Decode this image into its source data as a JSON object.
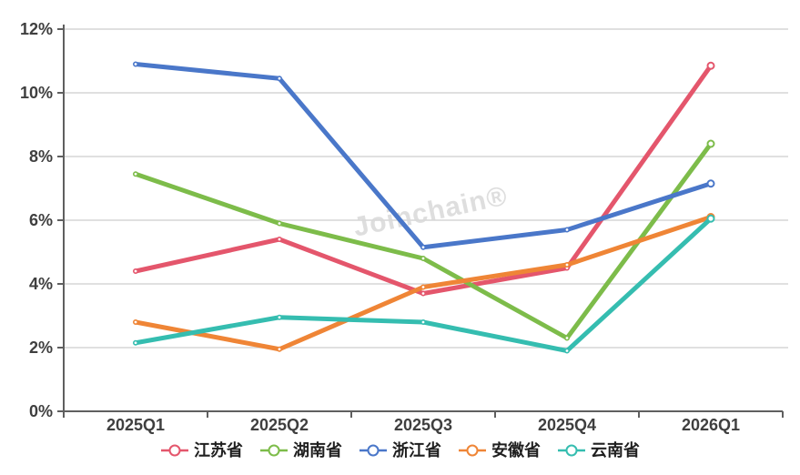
{
  "watermark": "Joinchain®",
  "colors": {
    "background": "#ffffff",
    "axis_line": "#5f5f5f",
    "grid_line": "#d5d5d5",
    "axis_label": "#3f3f3f",
    "legend_label": "#1f1f1f",
    "watermark": "#d9d9d9"
  },
  "chart_data": {
    "type": "line",
    "title": "",
    "xlabel": "",
    "ylabel": "",
    "categories": [
      "2025Q1",
      "2025Q2",
      "2025Q3",
      "2025Q4",
      "2026Q1"
    ],
    "series": [
      {
        "name": "江苏省",
        "color": "#e4566c",
        "values": [
          4.4,
          5.4,
          3.7,
          4.5,
          10.85
        ]
      },
      {
        "name": "湖南省",
        "color": "#7dbc4a",
        "values": [
          7.45,
          5.9,
          4.8,
          2.3,
          8.4
        ]
      },
      {
        "name": "浙江省",
        "color": "#4a77c9",
        "values": [
          10.9,
          10.45,
          5.15,
          5.7,
          7.15
        ]
      },
      {
        "name": "安徽省",
        "color": "#ef8536",
        "values": [
          2.8,
          1.95,
          3.9,
          4.6,
          6.1
        ]
      },
      {
        "name": "云南省",
        "color": "#35bdb0",
        "values": [
          2.15,
          2.95,
          2.8,
          1.9,
          6.05
        ]
      }
    ],
    "ylim": [
      0,
      12
    ],
    "y_tick_step": 2,
    "y_tick_labels": [
      "0%",
      "2%",
      "4%",
      "6%",
      "8%",
      "10%",
      "12%"
    ],
    "grid": true,
    "legend_position": "bottom"
  }
}
